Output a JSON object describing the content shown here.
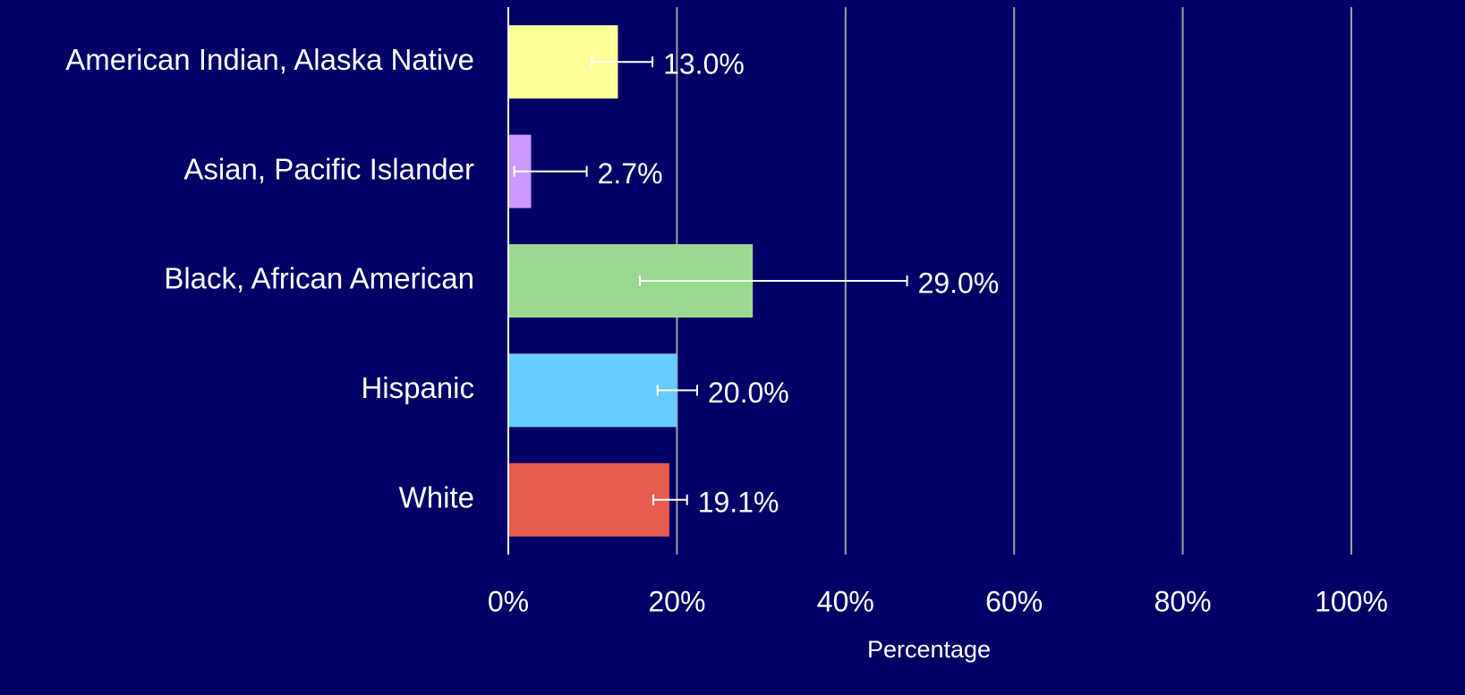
{
  "chart_data": {
    "type": "hbar",
    "x_label": "Percentage",
    "categories": [
      "American Indian, Alaska Native",
      "Asian, Pacific Islander",
      "Black, African American",
      "Hispanic",
      "White"
    ],
    "values": [
      13.0,
      2.7,
      29.0,
      20.0,
      19.1
    ],
    "value_labels": [
      "13.0%",
      "2.7%",
      "29.0%",
      "20.0%",
      "19.1%"
    ],
    "error_minus": [
      3.1,
      2.0,
      13.4,
      2.3,
      1.9
    ],
    "error_plus": [
      4.1,
      6.6,
      18.3,
      2.4,
      2.1
    ],
    "colors": [
      "#ffff99",
      "#cc99ff",
      "#99d98f",
      "#66ccff",
      "#e85c4f"
    ],
    "xlim": [
      0,
      100
    ],
    "xticks": [
      {
        "value": 0,
        "label": "0%"
      },
      {
        "value": 20,
        "label": "20%"
      },
      {
        "value": 40,
        "label": "40%"
      },
      {
        "value": 60,
        "label": "60%"
      },
      {
        "value": 80,
        "label": "80%"
      },
      {
        "value": 100,
        "label": "100%"
      }
    ],
    "grid": true
  }
}
